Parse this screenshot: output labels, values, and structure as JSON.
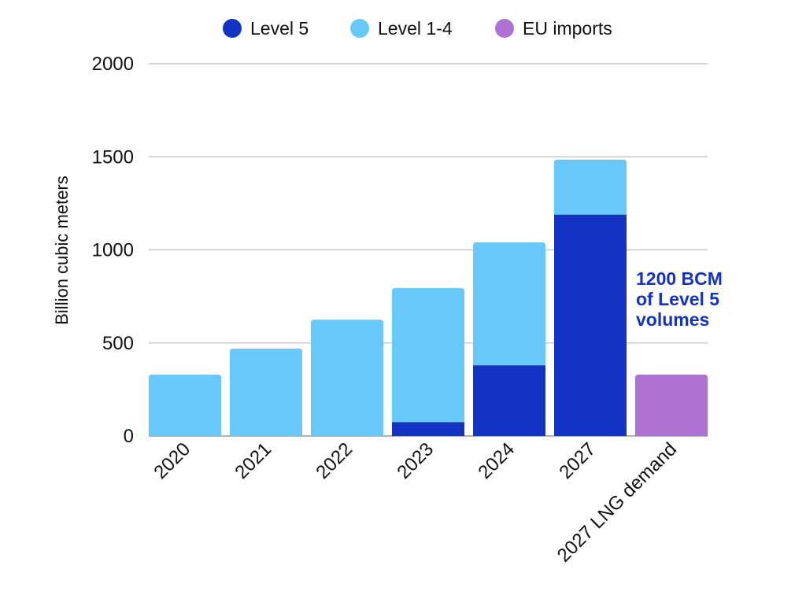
{
  "chart_data": {
    "type": "bar",
    "stacked": true,
    "title": "",
    "xlabel": "",
    "ylabel": "Billion cubic meters",
    "ylim": [
      0,
      2000
    ],
    "yticks": [
      0,
      500,
      1000,
      1500,
      2000
    ],
    "grid": true,
    "legend_position": "top",
    "categories": [
      "2020",
      "2021",
      "2022",
      "2023",
      "2024",
      "2027",
      "2027 LNG demand"
    ],
    "series": [
      {
        "name": "Level 5",
        "color": "#1233c4",
        "values": [
          0,
          0,
          0,
          75,
          380,
          1190,
          0
        ]
      },
      {
        "name": "Level 1-4",
        "color": "#66c9f9",
        "values": [
          330,
          470,
          625,
          720,
          660,
          295,
          0
        ]
      },
      {
        "name": "EU imports",
        "color": "#ae72d3",
        "values": [
          0,
          0,
          0,
          0,
          0,
          0,
          330
        ]
      }
    ],
    "annotation": {
      "lines": [
        "1200 BCM",
        "of Level 5",
        "volumes"
      ],
      "color": "#1233c4"
    }
  }
}
